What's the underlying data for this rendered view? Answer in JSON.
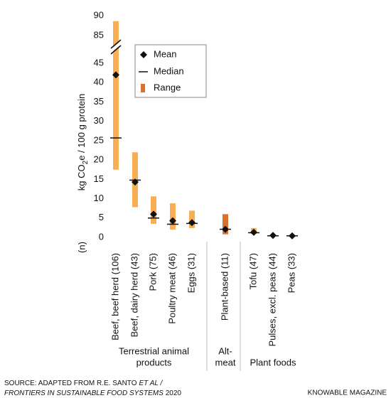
{
  "chart_data": {
    "type": "range",
    "y_label": [
      "kg CO",
      "2",
      "e / 100 g protein"
    ],
    "n_label": "(n)",
    "categories": [
      "Beef, beef herd (106)",
      "Beef, dairy herd (43)",
      "Pork (75)",
      "Poultry meat (46)",
      "Eggs (31)",
      "Plant-based (11)",
      "Tofu (47)",
      "Pulses, excl. peas (44)",
      "Peas (33)"
    ],
    "range_low": [
      17.5,
      7.8,
      3.5,
      2,
      2.4,
      0.8,
      0.9,
      0.3,
      0.2
    ],
    "range_high": [
      88.6,
      22,
      10.6,
      8.8,
      6.9,
      6,
      2.4,
      0.7,
      0.6
    ],
    "mean": [
      42,
      14.3,
      6,
      4.3,
      3.8,
      2.1,
      1.3,
      0.5,
      0.4
    ],
    "median": [
      25.7,
      14.8,
      5,
      3.4,
      3.6,
      2.1,
      1.2,
      0.4,
      0.4
    ],
    "colors": [
      "#f7ae55",
      "#f7ae55",
      "#f7ae55",
      "#f7ae55",
      "#f7ae55",
      "#d9712b",
      "#f7ae55",
      "#f7ae55",
      "#f7ae55"
    ],
    "ylim": [
      0,
      90
    ],
    "axis_break": [
      45,
      85
    ],
    "yticks": [
      0,
      5,
      10,
      15,
      20,
      25,
      30,
      35,
      40,
      45,
      85,
      90
    ],
    "legend": [
      "Mean",
      "Median",
      "Range"
    ],
    "groups": [
      {
        "lines": [
          "Terrestrial animal",
          "products"
        ],
        "first": 0,
        "last": 4
      },
      {
        "lines": [
          "Alt-",
          "meat"
        ],
        "first": 5,
        "last": 5
      },
      {
        "lines": [
          "Plant foods"
        ],
        "first": 6,
        "last": 8
      }
    ],
    "source": [
      "SOURCE: ADAPTED FROM R.E. SANTO",
      "ET AL /",
      "FRONTIERS IN SUSTAINABLE FOOD SYSTEMS",
      "2020"
    ],
    "credit": "KNOWABLE MAGAZINE"
  }
}
